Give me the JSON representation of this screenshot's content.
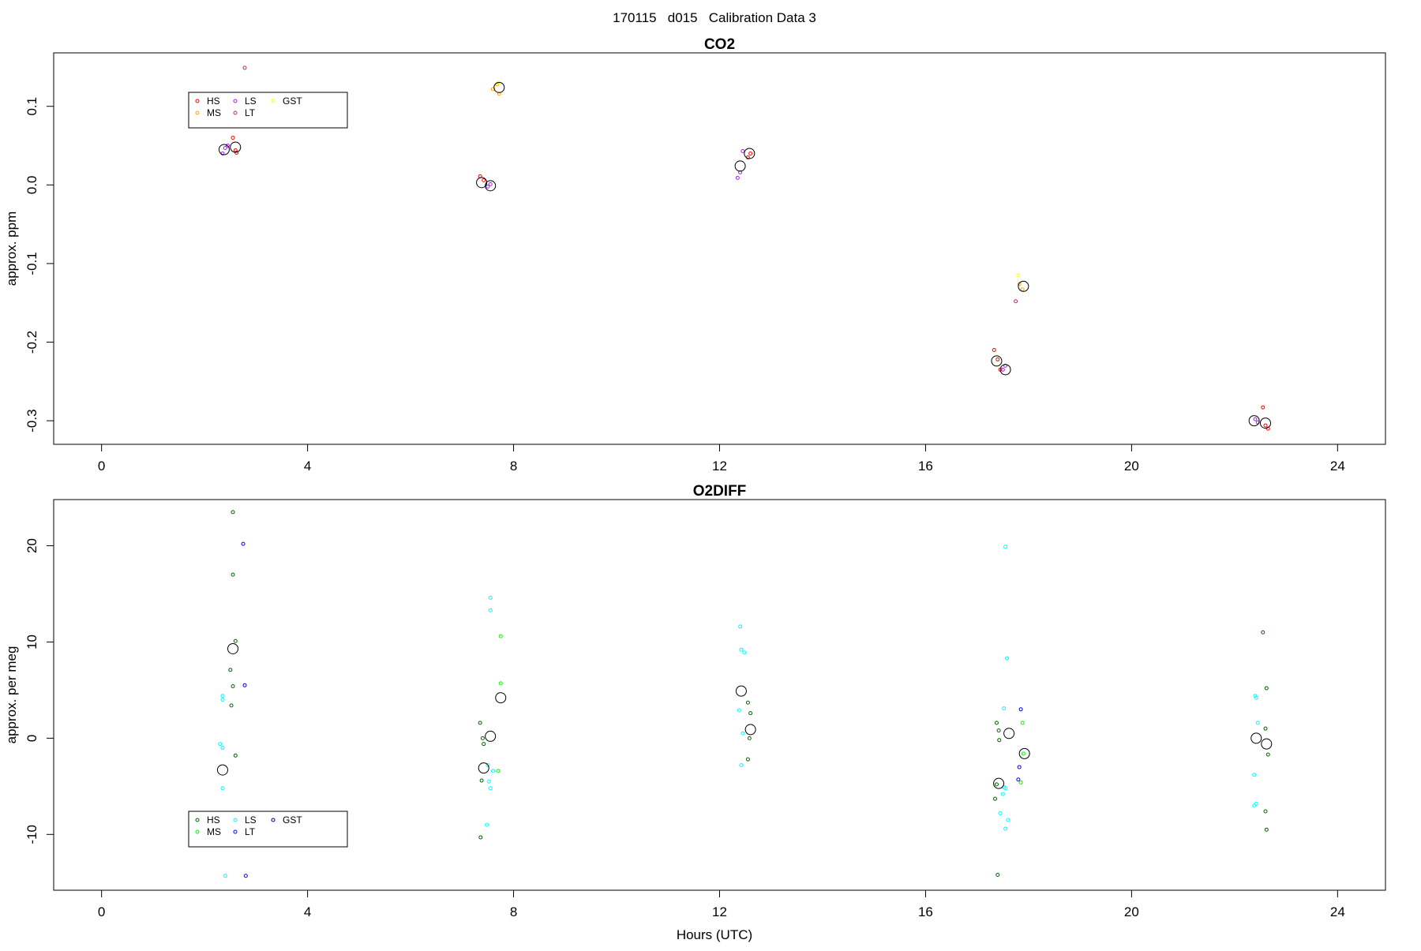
{
  "figure": {
    "title": "170115   d015   Calibration Data 3",
    "xlabel": "Hours (UTC)"
  },
  "chart_data": [
    {
      "type": "scatter",
      "title": "CO2",
      "xlabel": "",
      "ylabel": "approx. ppm",
      "xlim": [
        -0.93,
        24.93
      ],
      "ylim": [
        -0.33,
        0.168
      ],
      "xticks": [
        0,
        4,
        8,
        12,
        16,
        20,
        24
      ],
      "yticks": [
        -0.3,
        -0.2,
        -0.1,
        0.0,
        0.1
      ],
      "ytick_labels": [
        "-0.3",
        "-0.2",
        "-0.1",
        "0.0",
        "0.1"
      ],
      "grid": false,
      "legend": {
        "placement": "top-left",
        "ncol": 3
      },
      "series": [
        {
          "name": "HS",
          "color": "#ff0000",
          "x": [
            2.55,
            2.6,
            2.62,
            7.35,
            7.42,
            12.55,
            12.6,
            17.33,
            17.4,
            17.45,
            22.55,
            22.6,
            22.65
          ],
          "y": [
            0.06,
            0.044,
            0.041,
            0.011,
            0.006,
            0.035,
            0.04,
            -0.21,
            -0.222,
            -0.235,
            -0.283,
            -0.306,
            -0.31
          ]
        },
        {
          "name": "MS",
          "color": "#ffa500",
          "x": [
            7.6,
            7.68,
            7.72,
            17.82,
            17.88
          ],
          "y": [
            0.122,
            0.128,
            0.116,
            -0.126,
            -0.133
          ]
        },
        {
          "name": "LS",
          "color": "#a020f0",
          "x": [
            2.35,
            2.4,
            2.45,
            7.5,
            7.55,
            12.35,
            12.4,
            12.45,
            17.5,
            17.55,
            22.4,
            22.45
          ],
          "y": [
            0.04,
            0.047,
            0.05,
            -0.002,
            0.001,
            0.009,
            0.016,
            0.043,
            -0.235,
            -0.23,
            -0.298,
            -0.302
          ]
        },
        {
          "name": "LT",
          "color": "#b03060",
          "x": [
            2.78,
            17.75
          ],
          "y": [
            0.149,
            -0.148
          ]
        },
        {
          "name": "GST",
          "color": "#ffff00",
          "x": [
            7.7,
            17.8
          ],
          "y": [
            0.13,
            -0.115
          ]
        },
        {
          "name": "",
          "color": "#000000",
          "x": [
            2.38,
            2.6,
            7.38,
            7.55,
            7.72,
            12.4,
            12.58,
            17.38,
            17.55,
            17.9,
            22.38,
            22.6
          ],
          "y": [
            0.045,
            0.048,
            0.003,
            -0.001,
            0.124,
            0.024,
            0.04,
            -0.224,
            -0.235,
            -0.129,
            -0.3,
            -0.303
          ]
        }
      ]
    },
    {
      "type": "scatter",
      "title": "O2DIFF",
      "xlabel": "Hours (UTC)",
      "ylabel": "approx. per meg",
      "xlim": [
        -0.93,
        24.93
      ],
      "ylim": [
        -15.8,
        24.8
      ],
      "xticks": [
        0,
        4,
        8,
        12,
        16,
        20,
        24
      ],
      "yticks": [
        -10,
        0,
        10,
        20
      ],
      "ytick_labels": [
        "-10",
        "0",
        "10",
        "20"
      ],
      "grid": false,
      "legend": {
        "placement": "bottom-left",
        "ncol": 3
      },
      "series": [
        {
          "name": "HS",
          "color": "#006400",
          "x": [
            2.55,
            2.55,
            2.6,
            2.5,
            2.55,
            2.52,
            2.6,
            7.35,
            7.4,
            7.42,
            7.38,
            7.36,
            12.55,
            12.6,
            12.58,
            12.55,
            17.38,
            17.42,
            17.43,
            17.38,
            17.35,
            17.4,
            22.55,
            22.62,
            22.6,
            22.65,
            22.6,
            22.62
          ],
          "y": [
            23.5,
            17,
            10.1,
            7.1,
            5.4,
            3.4,
            -1.8,
            1.6,
            0,
            -0.6,
            -4.4,
            -10.3,
            3.7,
            2.6,
            0,
            -2.2,
            1.6,
            0.8,
            -0.2,
            -4.8,
            -6.3,
            -14.2,
            11,
            5.2,
            1,
            -1.7,
            -7.6,
            -9.5
          ]
        },
        {
          "name": "MS",
          "color": "#00ff00",
          "x": [
            7.75,
            7.75,
            7.7,
            17.88,
            17.9,
            17.85
          ],
          "y": [
            10.6,
            5.7,
            -3.4,
            1.6,
            -1.6,
            -4.6
          ]
        },
        {
          "name": "LS",
          "color": "#00ffff",
          "x": [
            2.35,
            2.35,
            2.3,
            2.35,
            2.35,
            2.4,
            7.55,
            7.55,
            7.5,
            7.6,
            7.52,
            7.55,
            7.48,
            12.4,
            12.42,
            12.48,
            12.38,
            12.45,
            12.42,
            17.55,
            17.58,
            17.52,
            17.55,
            17.5,
            17.45,
            17.6,
            17.55,
            17.52,
            22.4,
            22.42,
            22.45,
            22.38,
            22.42,
            22.38
          ],
          "y": [
            4.4,
            4,
            -0.6,
            -1,
            -5.2,
            -14.3,
            14.6,
            13.3,
            -2.8,
            -3.4,
            -4.5,
            -5.2,
            -9,
            11.6,
            9.2,
            8.9,
            2.9,
            0.5,
            -2.8,
            19.9,
            8.3,
            3.1,
            -5.2,
            -5.8,
            -7.8,
            -8.5,
            -9.4,
            -5.1,
            4.4,
            4.2,
            1.6,
            -3.8,
            -6.8,
            -7
          ]
        },
        {
          "name": "LT",
          "color": "#0000ff",
          "x": [
            2.75,
            2.78,
            2.8,
            17.85,
            17.82,
            17.8
          ],
          "y": [
            20.2,
            5.5,
            -14.3,
            3,
            -3,
            -4.3
          ]
        },
        {
          "name": "GST",
          "color": "#000080",
          "x": [],
          "y": []
        },
        {
          "name": "",
          "color": "#000000",
          "x": [
            2.55,
            2.35,
            7.55,
            7.75,
            7.42,
            12.42,
            12.6,
            17.62,
            17.42,
            17.92,
            22.42,
            22.62
          ],
          "y": [
            9.3,
            -3.3,
            0.2,
            4.2,
            -3.1,
            4.9,
            0.9,
            0.5,
            -4.7,
            -1.6,
            0,
            -0.6
          ]
        }
      ]
    }
  ]
}
